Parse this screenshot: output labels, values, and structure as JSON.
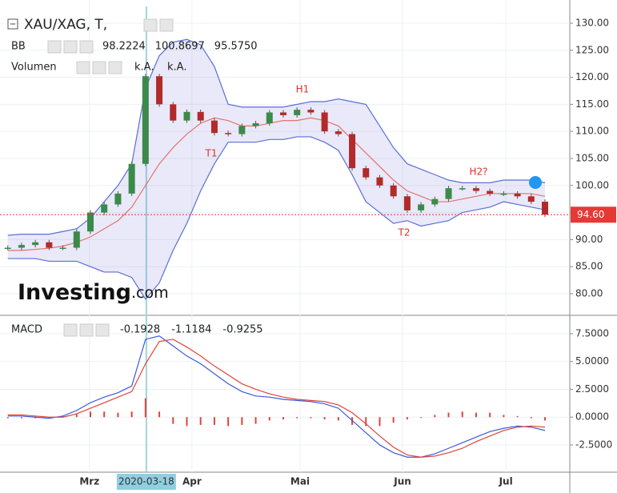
{
  "chart_data": [
    {
      "type": "candlestick",
      "title": "XAU/XAG, T,",
      "values": [
        88.5,
        89,
        89.5,
        88.5,
        88.5,
        91.5,
        95,
        96.5,
        98.5,
        104,
        120.2,
        115,
        112,
        113.6,
        112,
        109.7,
        109.5,
        111,
        111.5,
        113.5,
        113,
        114,
        113.5,
        110,
        109.5,
        103.2,
        101.5,
        100,
        98,
        95.4,
        96.5,
        97.5,
        99.5,
        99.5,
        99,
        98.5,
        98.5,
        98,
        97,
        94.6
      ],
      "up_color": "#3b8a4a",
      "down_color": "#b22a2a",
      "bollinger": {
        "name": "BB",
        "band_color": "#5b6fd6",
        "fill_color": "rgba(120,120,220,0.16)",
        "middle_color": "#e5736b",
        "upper": [
          90.8,
          91,
          91,
          91,
          91.5,
          92,
          94,
          97,
          100,
          104,
          118,
          124,
          126.5,
          127,
          126,
          122,
          115,
          114.5,
          114.5,
          114.5,
          114.5,
          115,
          115.5,
          115.5,
          116,
          115.5,
          115,
          111,
          107,
          104,
          103,
          102,
          101,
          100.5,
          100.5,
          100.5,
          101,
          101,
          101,
          100.5
        ],
        "middle": [
          88,
          88,
          88.2,
          88.4,
          88.8,
          89.5,
          90.5,
          92,
          93.5,
          96,
          100,
          104,
          107,
          109.5,
          111.5,
          112.5,
          112,
          111,
          111,
          111.5,
          112,
          112,
          112.5,
          112,
          111,
          108.5,
          106,
          103.5,
          101,
          99,
          98,
          97,
          97,
          97.5,
          98,
          98.5,
          98.5,
          98.5,
          98.5,
          98
        ],
        "lower": [
          86.5,
          86.5,
          86.5,
          86,
          86,
          86,
          85,
          84,
          84,
          83,
          79,
          82,
          88,
          93,
          99,
          104,
          108,
          108,
          108,
          108.5,
          108.5,
          109,
          109,
          108,
          106.5,
          102,
          97,
          95,
          93,
          93.5,
          92.5,
          93,
          93.5,
          95,
          95.5,
          96,
          97,
          96.5,
          96,
          95.5
        ],
        "readout_values": [
          98.2224,
          100.8697,
          95.575
        ],
        "readout_labels": [
          "98.2224",
          "100.8697",
          "95.5750"
        ],
        "readout_colors": [
          "#d01c1c",
          "#1c1cd0",
          "#1c1cd0"
        ]
      },
      "volume": {
        "name": "Volumen",
        "readout_labels": [
          "k.A.",
          "k.A."
        ]
      },
      "annotations": [
        "H1",
        "T1",
        "T2",
        "H2?"
      ],
      "annotation_color": "#e0302a",
      "last_price": 94.6,
      "last_price_label": "94.60",
      "last_price_color": "#e53935",
      "logo": [
        "Investing",
        ".com"
      ],
      "xlim": [
        -0.1,
        40.8
      ],
      "xticks": [
        {
          "value": 5.93,
          "label": "Mrz"
        },
        {
          "value": 13.37,
          "label": "Apr"
        },
        {
          "value": 21.22,
          "label": "Mai"
        },
        {
          "value": 28.66,
          "label": "Jun"
        },
        {
          "value": 36.16,
          "label": "Jul"
        }
      ],
      "crosshair": {
        "value": 10.06,
        "label": "2020-03-18"
      },
      "ylim": [
        76.3,
        133.1
      ],
      "yticks": [
        {
          "value": 80,
          "label": "80.00"
        },
        {
          "value": 85,
          "label": "85.00"
        },
        {
          "value": 90,
          "label": "90.00"
        },
        {
          "value": 95,
          "label": "95.00"
        },
        {
          "value": 100,
          "label": "100.00"
        },
        {
          "value": 105,
          "label": "105.00"
        },
        {
          "value": 110,
          "label": "110.00"
        },
        {
          "value": 115,
          "label": "115.00"
        },
        {
          "value": 120,
          "label": "120.00"
        },
        {
          "value": 125,
          "label": "125.00"
        },
        {
          "value": 130,
          "label": "130.00"
        }
      ]
    },
    {
      "type": "macd",
      "title": "MACD",
      "readout_values": [
        -0.1928,
        -1.1184,
        -0.9255
      ],
      "readout_colors": [
        "#d01c1c",
        "#1c1cd0",
        "#d01c1c"
      ],
      "macd": [
        0.1,
        0.1,
        0,
        -0.1,
        0.1,
        0.6,
        1.3,
        1.8,
        2.2,
        2.8,
        7.0,
        7.3,
        6.4,
        5.5,
        4.8,
        3.9,
        3.0,
        2.3,
        1.9,
        1.8,
        1.6,
        1.5,
        1.4,
        1.2,
        0.8,
        -0.3,
        -1.4,
        -2.5,
        -3.2,
        -3.6,
        -3.6,
        -3.3,
        -2.8,
        -2.3,
        -1.8,
        -1.3,
        -1.0,
        -0.8,
        -0.9,
        -1.2
      ],
      "signal": [
        0.2,
        0.2,
        0.1,
        0,
        0,
        0.3,
        0.8,
        1.3,
        1.8,
        2.3,
        4.8,
        6.8,
        7.0,
        6.3,
        5.5,
        4.6,
        3.8,
        3.0,
        2.5,
        2.1,
        1.8,
        1.6,
        1.5,
        1.4,
        1.1,
        0.4,
        -0.6,
        -1.7,
        -2.7,
        -3.4,
        -3.6,
        -3.5,
        -3.2,
        -2.8,
        -2.2,
        -1.7,
        -1.2,
        -0.9,
        -0.8,
        -0.9
      ],
      "histogram": [
        -0.1,
        -0.1,
        -0.1,
        -0.1,
        0.1,
        0.3,
        0.5,
        0.5,
        0.4,
        0.5,
        1.7,
        0.5,
        -0.6,
        -0.8,
        -0.7,
        -0.7,
        -0.8,
        -0.7,
        -0.6,
        -0.3,
        -0.2,
        -0.1,
        -0.1,
        -0.2,
        -0.3,
        -0.7,
        -0.8,
        -0.8,
        -0.5,
        -0.2,
        0,
        0.2,
        0.4,
        0.5,
        0.4,
        0.4,
        0.2,
        0.1,
        -0.1,
        -0.3
      ],
      "macd_color": "#3a5bd9",
      "signal_color": "#e0443a",
      "histogram_color": "#e0443a",
      "ylim": [
        -4.95,
        8.94
      ],
      "yticks": [
        {
          "value": 7.5,
          "label": "7.5000"
        },
        {
          "value": 5,
          "label": "5.0000"
        },
        {
          "value": 2.5,
          "label": "2.5000"
        },
        {
          "value": 0,
          "label": "0.0000"
        },
        {
          "value": -2.5,
          "label": "-2.5000"
        }
      ]
    }
  ]
}
